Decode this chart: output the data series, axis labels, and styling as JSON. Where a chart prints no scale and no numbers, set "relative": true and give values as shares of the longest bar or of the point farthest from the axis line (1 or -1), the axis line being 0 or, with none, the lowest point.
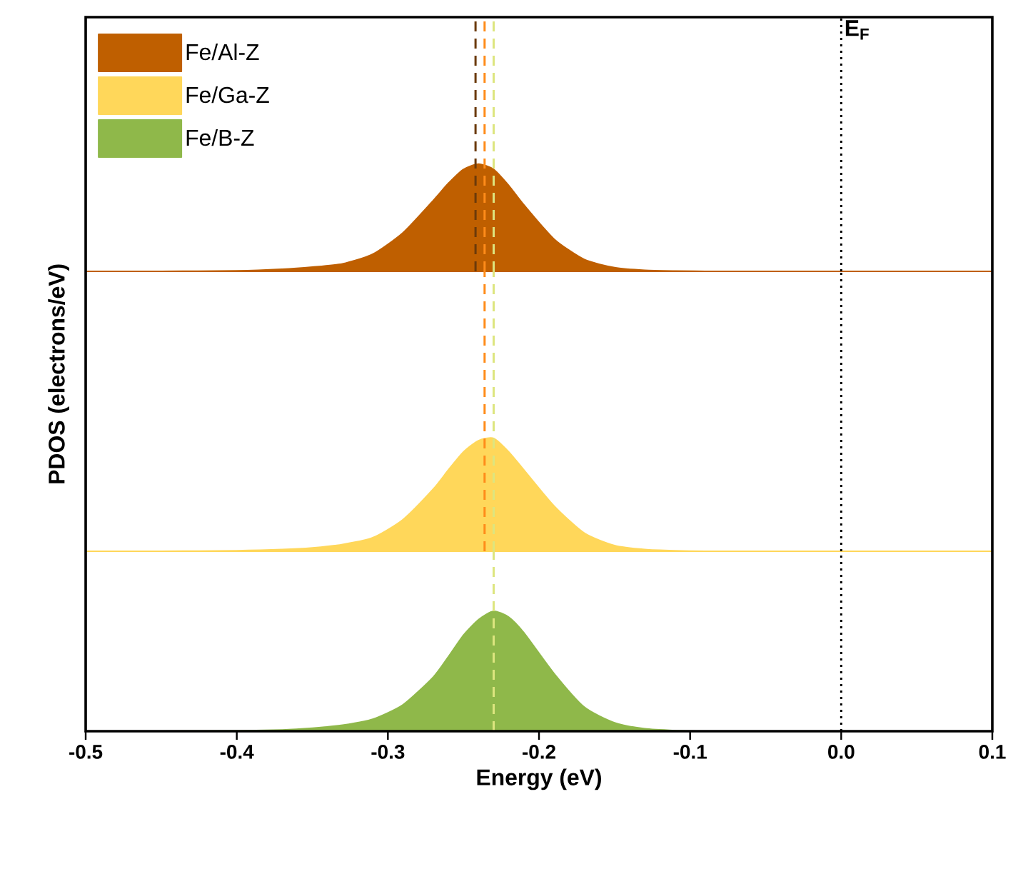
{
  "chart_data": [
    {
      "type": "area",
      "relative": true,
      "legend": "top left",
      "tick_labels": false,
      "xlim": [
        -0.5,
        0.1
      ],
      "x": [
        -0.5,
        -0.45,
        -0.4,
        -0.37,
        -0.35,
        -0.33,
        -0.31,
        -0.29,
        -0.27,
        -0.26,
        -0.25,
        -0.24,
        -0.23,
        -0.22,
        -0.21,
        -0.19,
        -0.17,
        -0.15,
        -0.13,
        -0.11,
        -0.09,
        -0.05,
        0,
        0.05,
        0.1
      ],
      "series": [
        {
          "name": "Fe/Al-Z",
          "color": "#bf5f00",
          "values": [
            0,
            0,
            0.005,
            0.02,
            0.04,
            0.07,
            0.16,
            0.36,
            0.66,
            0.82,
            0.95,
            1.0,
            0.95,
            0.8,
            0.62,
            0.3,
            0.11,
            0.035,
            0.01,
            0.003,
            0,
            0,
            0,
            0,
            0
          ]
        }
      ],
      "ref_lines": [
        {
          "axis": "x",
          "value": -0.242,
          "color": "#6b3a0a",
          "line_style": "dashed"
        },
        {
          "axis": "x",
          "value": -0.236,
          "color": "#ff8c1a",
          "line_style": "dashed"
        },
        {
          "axis": "x",
          "value": -0.23,
          "color": "#dde57f",
          "line_style": "dashed"
        },
        {
          "axis": "x",
          "value": 0,
          "color": "#000000",
          "line_style": "dotted",
          "label": "E$_{F}$"
        }
      ]
    },
    {
      "type": "area",
      "relative": true,
      "legend": "top left",
      "tick_labels": false,
      "xlim": [
        -0.5,
        0.1
      ],
      "ylabel": "PDOS (electrons/eV)",
      "x": [
        -0.5,
        -0.45,
        -0.4,
        -0.37,
        -0.35,
        -0.33,
        -0.31,
        -0.29,
        -0.27,
        -0.26,
        -0.25,
        -0.24,
        -0.23,
        -0.22,
        -0.21,
        -0.19,
        -0.17,
        -0.15,
        -0.13,
        -0.11,
        -0.09,
        -0.05,
        0,
        0.05,
        0.1
      ],
      "series": [
        {
          "name": "Fe/Ga-Z",
          "color": "#ffd75a",
          "values": [
            0,
            0,
            0.005,
            0.015,
            0.03,
            0.06,
            0.12,
            0.28,
            0.55,
            0.72,
            0.88,
            0.98,
            1.0,
            0.88,
            0.72,
            0.4,
            0.16,
            0.05,
            0.015,
            0.004,
            0,
            0,
            0,
            0,
            0
          ]
        }
      ],
      "ref_lines": [
        {
          "axis": "x",
          "value": -0.236,
          "color": "#ff8c1a",
          "line_style": "dashed"
        },
        {
          "axis": "x",
          "value": -0.23,
          "color": "#dde57f",
          "line_style": "dashed"
        },
        {
          "axis": "x",
          "value": 0,
          "color": "#000000",
          "line_style": "dotted"
        }
      ]
    },
    {
      "type": "area",
      "relative": true,
      "legend": "top left",
      "tick_labels": "x",
      "xlim": [
        -0.5,
        0.1
      ],
      "xticks": [
        -0.5,
        -0.4,
        -0.3,
        -0.2,
        -0.1,
        {
          "value": 0,
          "label": "0.0"
        },
        0.1
      ],
      "xlabel": "Energy (eV)",
      "x": [
        -0.5,
        -0.45,
        -0.4,
        -0.37,
        -0.35,
        -0.33,
        -0.31,
        -0.29,
        -0.27,
        -0.26,
        -0.25,
        -0.24,
        -0.23,
        -0.22,
        -0.21,
        -0.19,
        -0.17,
        -0.15,
        -0.13,
        -0.11,
        -0.09,
        -0.05,
        0,
        0.05,
        0.1
      ],
      "series": [
        {
          "name": "Fe/B-Z",
          "color": "#8fb84a",
          "values": [
            0,
            0,
            0.003,
            0.01,
            0.025,
            0.05,
            0.1,
            0.22,
            0.45,
            0.62,
            0.8,
            0.93,
            1.0,
            0.95,
            0.82,
            0.48,
            0.2,
            0.07,
            0.02,
            0.005,
            0,
            0,
            0,
            0,
            0
          ]
        }
      ],
      "ref_lines": [
        {
          "axis": "x",
          "value": -0.23,
          "color": "#dde57f",
          "line_style": "dashed"
        },
        {
          "axis": "x",
          "value": 0,
          "color": "#000000",
          "line_style": "dotted"
        }
      ]
    }
  ]
}
